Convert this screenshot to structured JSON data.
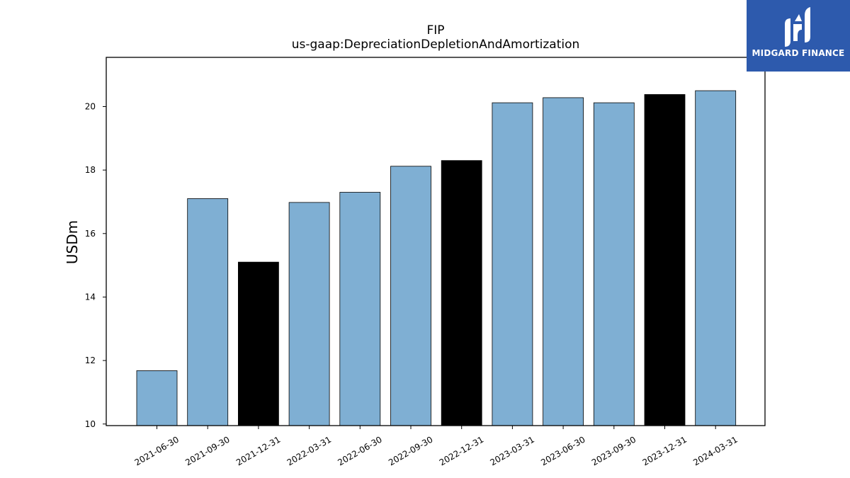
{
  "chart_data": {
    "type": "bar",
    "title": "FIP",
    "subtitle": "us-gaap:DepreciationDepletionAndAmortization",
    "xlabel": "",
    "ylabel": "USDm",
    "ylim": [
      9.95,
      21.55
    ],
    "yticks": [
      10,
      12,
      14,
      16,
      18,
      20
    ],
    "grid": false,
    "categories": [
      "2021-06-30",
      "2021-09-30",
      "2021-12-31",
      "2022-03-31",
      "2022-06-30",
      "2022-09-30",
      "2022-12-31",
      "2023-03-31",
      "2023-06-30",
      "2023-09-30",
      "2023-12-31",
      "2024-03-31"
    ],
    "values": [
      11.68,
      17.1,
      15.1,
      16.98,
      17.3,
      18.12,
      18.3,
      20.12,
      20.28,
      20.12,
      20.38,
      20.5
    ],
    "bar_colors": [
      "#7fafd3",
      "#7fafd3",
      "#000000",
      "#7fafd3",
      "#7fafd3",
      "#7fafd3",
      "#000000",
      "#7fafd3",
      "#7fafd3",
      "#7fafd3",
      "#000000",
      "#7fafd3"
    ]
  },
  "logo": {
    "text": "MIDGARD FINANCE",
    "background": "#2d5aad"
  }
}
